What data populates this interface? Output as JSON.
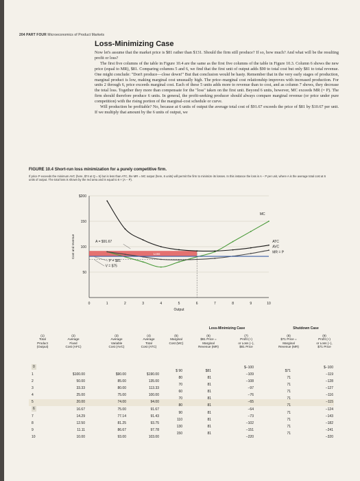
{
  "header": {
    "page_number": "204",
    "part": "PART FOUR",
    "part_title": "Microeconomics of Product Markets"
  },
  "section_title": "Loss-Minimizing Case",
  "body": {
    "p1": "Now let's assume that the market price is $81 rather than $131. Should the firm still produce? If so, how much? And what will be the resulting profit or loss?",
    "p2": "The first five columns of the table in Figure 10.4 are the same as the first five columns of the table in Figure 10.3. Column 6 shows the new price (equal to MR), $81. Comparing columns 5 and 6, we find that the first unit of output adds $90 to total cost but only $81 to total revenue. One might conclude: \"Don't produce—close down!\" But that conclusion would be hasty. Remember that in the very early stages of production, marginal product is low, making marginal cost unusually high. The price–marginal cost relationship improves with increased production. For units 2 through 6, price exceeds marginal cost. Each of these 5 units adds more to revenue than to cost, and as column 7 shows, they decrease the total loss. Together they more than compensate for the \"loss\" taken on the first unit. Beyond 6 units, however, MC exceeds MR (= P). The firm should therefore produce 6 units. In general, the profit-seeking producer should always compare marginal revenue (or price under pure competition) with the rising portion of the marginal-cost schedule or curve.",
    "p3": "Will production be profitable? No, because at 6 units of output the average total cost of $91.67 exceeds the price of $81 by $10.67 per unit. If we multiply that amount by the 6 units of output, we"
  },
  "figure": {
    "title_bold": "FIGURE 10.4",
    "title_rest": "Short-run loss minimization for a purely competitive firm.",
    "caption": "If price P exceeds the minimum AVC (here, $74 at Q = 5) but is less than ATC, the MR = MC output (here, 6 units) will permit the firm to minimize its losses. In this instance the loss is A − P per unit, where A is the average total cost at 6 units of output. The total loss is shown by the red area and is equal to 6 × (A − P)."
  },
  "chart_data": {
    "type": "line",
    "xlabel": "Output",
    "ylabel": "Cost and revenue",
    "x": [
      1,
      2,
      3,
      4,
      5,
      6,
      7,
      8,
      9,
      10
    ],
    "xlim": [
      0,
      10
    ],
    "ylim": [
      0,
      200
    ],
    "x_ticks": [
      "0",
      "1",
      "2",
      "3",
      "4",
      "5",
      "6",
      "7",
      "8",
      "9",
      "10"
    ],
    "y_ticks": [
      "50",
      "100",
      "150",
      "$200"
    ],
    "y_tick_values": [
      50,
      100,
      150,
      200
    ],
    "series": [
      {
        "name": "MC",
        "color": "#4a9a3a",
        "values": [
          90,
          80,
          70,
          60,
          70,
          80,
          90,
          110,
          130,
          150
        ]
      },
      {
        "name": "ATC",
        "color": "#1a1a1a",
        "values": [
          190.0,
          135.0,
          113.33,
          100.0,
          94.0,
          91.67,
          91.43,
          93.75,
          97.78,
          103.0
        ]
      },
      {
        "name": "AVC",
        "color": "#1a1a1a",
        "values": [
          90.0,
          85.0,
          80.0,
          75.0,
          74.0,
          75.0,
          77.14,
          81.25,
          86.67,
          93.0
        ]
      },
      {
        "name": "MR = P",
        "color": "#3a5fa8",
        "values": [
          81,
          81,
          81,
          81,
          81,
          81,
          81,
          81,
          81,
          81
        ]
      }
    ],
    "annotations": {
      "A": "A = $91.67",
      "P": "P = $81",
      "V": "V = $75",
      "loss": "Loss",
      "loss_area": {
        "q": 6,
        "atc": 91.67,
        "price": 81
      }
    },
    "labels": {
      "mc": "MC",
      "atc": "ATC",
      "avc": "AVC",
      "mrp": "MR = P"
    },
    "colors": {
      "loss": "#e05a5a",
      "mc": "#4a9a3a",
      "atc": "#1a1a1a",
      "mrp": "#3a5fa8",
      "grid": "#cfc9bb"
    }
  },
  "table": {
    "groups": {
      "loss_min": "Loss-Minimizing Case",
      "shutdown": "Shutdown Case"
    },
    "headers": [
      "(1)\nTotal\nProduct\n(Output)",
      "(2)\nAverage\nFixed\nCost (AFC)",
      "(3)\nAverage\nVariable\nCost (AVC)",
      "(4)\nAverage\nTotal\nCost (ATC)",
      "(5)\nMarginal\nCost (MC)",
      "(6)\n$81 Price =\nMarginal\nRevenue (MR)",
      "(7)\nProfit (+)\nor Loss (−),\n$81 Price",
      "(8)\n$71 Price =\nMarginal\nRevenue (MR)",
      "(9)\nProfit (+)\nor Loss (−),\n$71 Price"
    ],
    "output": [
      "0",
      "1",
      "2",
      "3",
      "4",
      "5",
      "6",
      "7",
      "8",
      "9",
      "10"
    ],
    "afc": [
      "",
      "$100.00",
      "50.00",
      "33.33",
      "25.00",
      "20.00",
      "16.67",
      "14.29",
      "12.50",
      "11.11",
      "10.00"
    ],
    "avc": [
      "",
      "$90.00",
      "85.00",
      "80.00",
      "75.00",
      "74.00",
      "75.00",
      "77.14",
      "81.25",
      "86.67",
      "93.00"
    ],
    "atc": [
      "",
      "$190.00",
      "135.00",
      "113.33",
      "100.00",
      "94.00",
      "91.67",
      "91.43",
      "93.75",
      "97.78",
      "103.00"
    ],
    "mc": [
      "$ 90",
      "80",
      "70",
      "60",
      "70",
      "80",
      "90",
      "110",
      "130",
      "150"
    ],
    "mr81": [
      "$81",
      "81",
      "81",
      "81",
      "81",
      "81",
      "81",
      "81",
      "81",
      "81"
    ],
    "profit81": [
      "$−100",
      "−109",
      "−108",
      "−97",
      "−76",
      "−65",
      "−64",
      "−73",
      "−102",
      "−151",
      "−220"
    ],
    "mr71": [
      "$71",
      "71",
      "71",
      "71",
      "71",
      "71",
      "71",
      "71",
      "71",
      "71"
    ],
    "profit71": [
      "$−100",
      "−119",
      "−128",
      "−127",
      "−116",
      "−115",
      "−124",
      "−143",
      "−182",
      "−241",
      "−320"
    ]
  }
}
